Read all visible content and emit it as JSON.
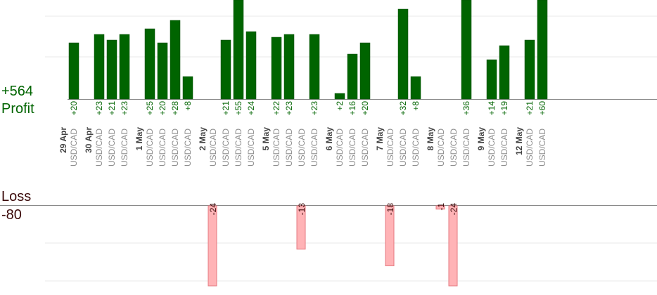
{
  "summary": {
    "profit_total": "+564",
    "profit_label": "Profit",
    "loss_label": "Loss",
    "loss_total": "-80"
  },
  "colors": {
    "profit_bar": "#006400",
    "profit_bar_edge": "#004d00",
    "profit_text": "#006400",
    "loss_bar": "#ffb3b6",
    "loss_bar_edge": "#e57a80",
    "loss_text": "#3b0a0a",
    "date_text": "#444444",
    "pair_text": "#8c8c8c",
    "grid": "#e8e8e8",
    "baseline": "#888888"
  },
  "chart_data": {
    "type": "bar",
    "title": "",
    "pair": "USD/CAD",
    "grid": true,
    "profit_ylim": [
      0,
      30
    ],
    "loss_ylim": [
      0,
      30
    ],
    "days": [
      {
        "date": "29 Apr",
        "trades": [
          20
        ]
      },
      {
        "date": "30 Apr",
        "trades": [
          23,
          21,
          23
        ]
      },
      {
        "date": "1 May",
        "trades": [
          25,
          20,
          28,
          8
        ]
      },
      {
        "date": "2 May",
        "trades": [
          -24,
          21,
          55,
          24
        ]
      },
      {
        "date": "5 May",
        "trades": [
          22,
          23,
          -13,
          23
        ]
      },
      {
        "date": "6 May",
        "trades": [
          2,
          16,
          20
        ]
      },
      {
        "date": "7 May",
        "trades": [
          -18,
          32,
          8
        ]
      },
      {
        "date": "8 May",
        "trades": [
          -1,
          -24,
          36
        ]
      },
      {
        "date": "9 May",
        "trades": [
          14,
          19
        ]
      },
      {
        "date": "12 May",
        "trades": [
          21,
          60
        ]
      }
    ]
  }
}
